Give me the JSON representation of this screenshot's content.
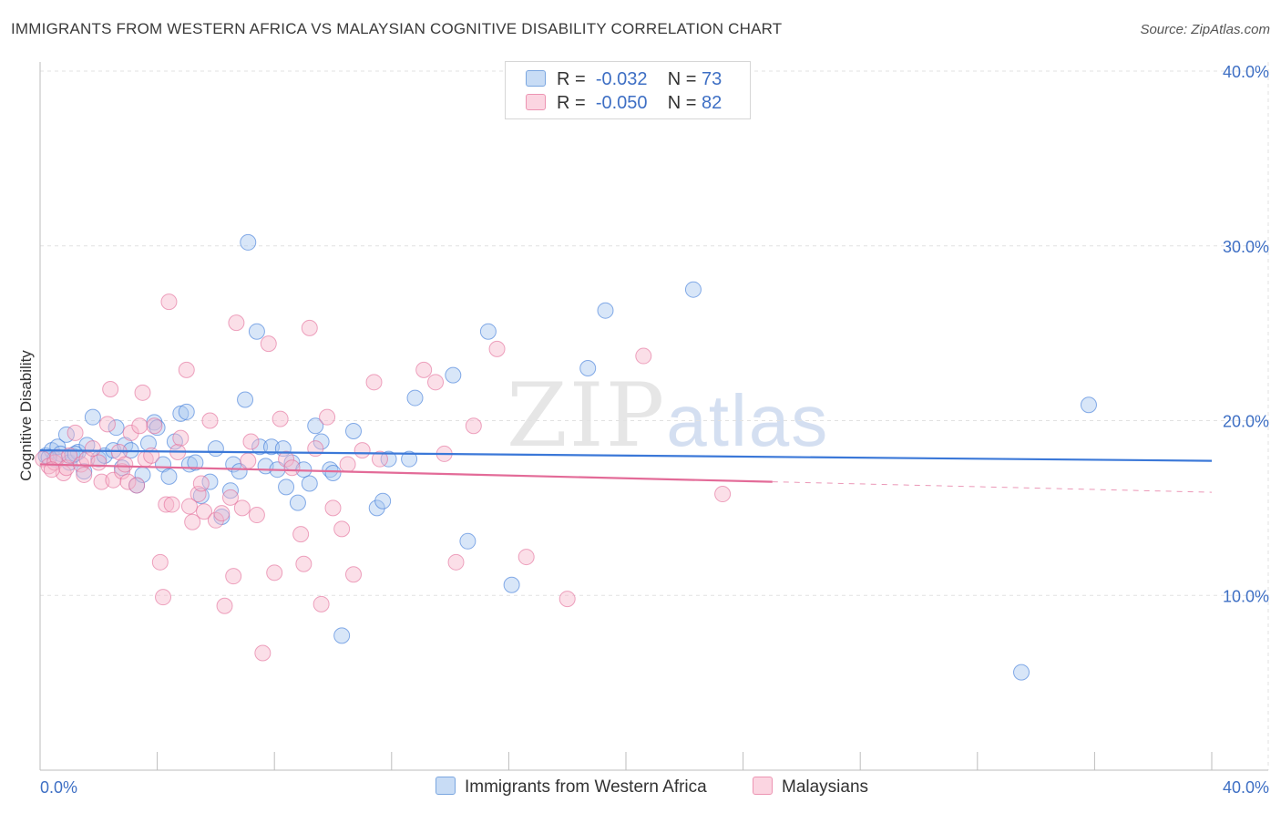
{
  "title": "IMMIGRANTS FROM WESTERN AFRICA VS MALAYSIAN COGNITIVE DISABILITY CORRELATION CHART",
  "source": "Source: ZipAtlas.com",
  "watermark": {
    "zip": "ZIP",
    "atlas": "atlas"
  },
  "legend": {
    "rows": [
      {
        "r_label": "R =",
        "r_value": "-0.032",
        "n_label": "N =",
        "n_value": "73",
        "color": "#a9c8f0"
      },
      {
        "r_label": "R =",
        "r_value": "-0.050",
        "n_label": "N =",
        "n_value": "82",
        "color": "#f6b8cb"
      }
    ]
  },
  "bottom_legend": [
    {
      "label": "Immigrants from Western Africa",
      "color": "#a9c8f0"
    },
    {
      "label": "Malaysians",
      "color": "#f6b8cb"
    }
  ],
  "chart_data": {
    "type": "scatter",
    "title": "IMMIGRANTS FROM WESTERN AFRICA VS MALAYSIAN COGNITIVE DISABILITY CORRELATION CHART",
    "xlabel": "",
    "ylabel": "Cognitive Disability",
    "xlim": [
      0,
      40
    ],
    "ylim": [
      0,
      40
    ],
    "x_tick_labels": [
      "0.0%",
      "40.0%"
    ],
    "y_ticks": [
      10,
      20,
      30,
      40
    ],
    "y_tick_labels": [
      "10.0%",
      "20.0%",
      "30.0%",
      "40.0%"
    ],
    "grid": true,
    "legend_position": "top-center",
    "series": [
      {
        "name": "Immigrants from Western Africa",
        "color": "#3b78d8",
        "fill": "#a9c8f0",
        "trend": {
          "x0": 0,
          "y0": 18.3,
          "x1": 40,
          "y1": 17.7
        },
        "points": [
          [
            0.2,
            18.0
          ],
          [
            0.4,
            18.3
          ],
          [
            0.5,
            17.8
          ],
          [
            0.6,
            18.5
          ],
          [
            0.7,
            18.1
          ],
          [
            0.9,
            19.2
          ],
          [
            1.0,
            17.6
          ],
          [
            1.1,
            18.0
          ],
          [
            1.3,
            18.2
          ],
          [
            1.5,
            17.1
          ],
          [
            1.6,
            18.6
          ],
          [
            1.8,
            20.2
          ],
          [
            2.0,
            17.8
          ],
          [
            2.2,
            18.0
          ],
          [
            2.5,
            18.3
          ],
          [
            2.6,
            19.6
          ],
          [
            2.8,
            17.3
          ],
          [
            2.9,
            18.6
          ],
          [
            3.1,
            18.3
          ],
          [
            3.3,
            16.3
          ],
          [
            3.5,
            16.9
          ],
          [
            3.7,
            18.7
          ],
          [
            3.9,
            19.9
          ],
          [
            4.0,
            19.6
          ],
          [
            4.2,
            17.5
          ],
          [
            4.4,
            16.8
          ],
          [
            4.6,
            18.8
          ],
          [
            4.8,
            20.4
          ],
          [
            5.0,
            20.5
          ],
          [
            5.1,
            17.5
          ],
          [
            5.3,
            17.6
          ],
          [
            5.5,
            15.7
          ],
          [
            5.8,
            16.5
          ],
          [
            6.0,
            18.4
          ],
          [
            6.2,
            14.5
          ],
          [
            6.5,
            16.0
          ],
          [
            6.6,
            17.5
          ],
          [
            6.8,
            17.1
          ],
          [
            7.0,
            21.2
          ],
          [
            7.1,
            30.2
          ],
          [
            7.4,
            25.1
          ],
          [
            7.5,
            18.5
          ],
          [
            7.7,
            17.4
          ],
          [
            7.9,
            18.5
          ],
          [
            8.1,
            17.2
          ],
          [
            8.3,
            18.4
          ],
          [
            8.4,
            16.2
          ],
          [
            8.6,
            17.6
          ],
          [
            8.8,
            15.3
          ],
          [
            9.0,
            17.2
          ],
          [
            9.2,
            16.4
          ],
          [
            9.4,
            19.7
          ],
          [
            9.6,
            18.8
          ],
          [
            9.9,
            17.2
          ],
          [
            10.0,
            17.0
          ],
          [
            10.3,
            7.7
          ],
          [
            10.7,
            19.4
          ],
          [
            11.5,
            15.0
          ],
          [
            11.7,
            15.4
          ],
          [
            11.9,
            17.8
          ],
          [
            12.6,
            17.8
          ],
          [
            12.8,
            21.3
          ],
          [
            14.1,
            22.6
          ],
          [
            14.6,
            13.1
          ],
          [
            15.3,
            25.1
          ],
          [
            16.1,
            10.6
          ],
          [
            18.7,
            23.0
          ],
          [
            19.3,
            26.3
          ],
          [
            22.3,
            27.5
          ],
          [
            33.5,
            5.6
          ],
          [
            35.8,
            20.9
          ],
          [
            0.3,
            17.9
          ],
          [
            1.2,
            18.1
          ]
        ]
      },
      {
        "name": "Malaysians",
        "color": "#e36b98",
        "fill": "#f6b8cb",
        "trend": {
          "x0": 0,
          "y0": 17.5,
          "x1": 25.0,
          "y1": 16.5
        },
        "trend_dashed": {
          "x0": 25.0,
          "y0": 16.5,
          "x1": 40,
          "y1": 15.9
        },
        "points": [
          [
            0.1,
            17.8
          ],
          [
            0.3,
            17.4
          ],
          [
            0.5,
            17.6
          ],
          [
            0.6,
            17.9
          ],
          [
            0.8,
            17.0
          ],
          [
            0.9,
            17.3
          ],
          [
            1.0,
            18.0
          ],
          [
            1.2,
            19.3
          ],
          [
            1.4,
            17.5
          ],
          [
            1.6,
            17.8
          ],
          [
            1.8,
            18.4
          ],
          [
            2.0,
            17.6
          ],
          [
            2.1,
            16.5
          ],
          [
            2.3,
            19.8
          ],
          [
            2.4,
            21.8
          ],
          [
            2.5,
            16.6
          ],
          [
            2.7,
            18.2
          ],
          [
            2.8,
            17.1
          ],
          [
            3.0,
            16.5
          ],
          [
            3.1,
            19.3
          ],
          [
            3.3,
            16.3
          ],
          [
            3.4,
            19.7
          ],
          [
            3.5,
            21.6
          ],
          [
            3.6,
            17.8
          ],
          [
            3.8,
            18.0
          ],
          [
            3.9,
            19.7
          ],
          [
            4.1,
            11.9
          ],
          [
            4.2,
            9.9
          ],
          [
            4.3,
            15.2
          ],
          [
            4.4,
            26.8
          ],
          [
            4.5,
            15.2
          ],
          [
            4.7,
            18.2
          ],
          [
            4.8,
            19.0
          ],
          [
            5.0,
            22.9
          ],
          [
            5.1,
            15.1
          ],
          [
            5.2,
            14.2
          ],
          [
            5.4,
            15.8
          ],
          [
            5.5,
            16.4
          ],
          [
            5.6,
            14.8
          ],
          [
            5.8,
            20.0
          ],
          [
            6.0,
            14.3
          ],
          [
            6.2,
            14.7
          ],
          [
            6.3,
            9.4
          ],
          [
            6.5,
            15.6
          ],
          [
            6.6,
            11.1
          ],
          [
            6.7,
            25.6
          ],
          [
            6.9,
            15.0
          ],
          [
            7.2,
            18.8
          ],
          [
            7.4,
            14.6
          ],
          [
            7.6,
            6.7
          ],
          [
            7.8,
            24.4
          ],
          [
            8.0,
            11.3
          ],
          [
            8.2,
            20.1
          ],
          [
            8.4,
            17.8
          ],
          [
            8.6,
            17.3
          ],
          [
            8.9,
            13.5
          ],
          [
            9.0,
            11.8
          ],
          [
            9.2,
            25.3
          ],
          [
            9.4,
            18.4
          ],
          [
            9.6,
            9.5
          ],
          [
            9.8,
            20.2
          ],
          [
            10.0,
            15.0
          ],
          [
            10.3,
            13.8
          ],
          [
            10.5,
            17.5
          ],
          [
            10.7,
            11.2
          ],
          [
            11.0,
            18.3
          ],
          [
            11.4,
            22.2
          ],
          [
            11.6,
            17.8
          ],
          [
            13.1,
            22.9
          ],
          [
            13.5,
            22.2
          ],
          [
            13.8,
            18.1
          ],
          [
            14.2,
            11.9
          ],
          [
            14.8,
            19.7
          ],
          [
            15.6,
            24.1
          ],
          [
            16.6,
            12.2
          ],
          [
            18.0,
            9.8
          ],
          [
            20.6,
            23.7
          ],
          [
            23.3,
            15.8
          ],
          [
            0.4,
            17.2
          ],
          [
            1.5,
            16.9
          ],
          [
            2.9,
            17.5
          ],
          [
            7.1,
            17.7
          ]
        ]
      }
    ]
  }
}
